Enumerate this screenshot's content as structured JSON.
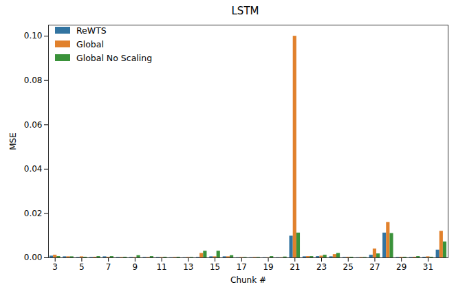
{
  "chart_data": {
    "type": "bar",
    "title": "LSTM",
    "x_label": "Chunk #",
    "y_label": "MSE",
    "categories": [
      3,
      null,
      5,
      null,
      7,
      null,
      9,
      null,
      11,
      null,
      13,
      null,
      15,
      null,
      17,
      null,
      19,
      null,
      21,
      null,
      23,
      null,
      25,
      null,
      27,
      null,
      29,
      null,
      31,
      null
    ],
    "series": [
      {
        "name": "ReWTS",
        "color": "#3274a1",
        "values": [
          0.0008,
          0.0005,
          0.0002,
          0.0002,
          0.0005,
          0.0002,
          0.0002,
          0.0002,
          0.0002,
          0.0001,
          0.0001,
          0.0002,
          0.0005,
          0.0005,
          0.0001,
          0.0001,
          0.0001,
          0.0001,
          0.0098,
          0.0005,
          0.0006,
          0.0005,
          0.0002,
          0.0001,
          0.0012,
          0.0112,
          0.0002,
          0.0002,
          0.0003,
          0.0035
        ]
      },
      {
        "name": "Global",
        "color": "#e1812c",
        "values": [
          0.0012,
          0.0005,
          0.0005,
          0.0003,
          0.0003,
          0.0002,
          0.0002,
          0.0002,
          0.0002,
          0.0002,
          0.0002,
          0.002,
          0.0005,
          0.0005,
          0.0002,
          0.0002,
          0.0001,
          0.0001,
          0.1,
          0.0006,
          0.0008,
          0.0015,
          0.0003,
          0.0002,
          0.004,
          0.016,
          0.0003,
          0.0003,
          0.0005,
          0.012
        ]
      },
      {
        "name": "Global No Scaling",
        "color": "#3a923a",
        "values": [
          0.0006,
          0.0005,
          0.0003,
          0.0006,
          0.0006,
          0.0003,
          0.001,
          0.0006,
          0.0003,
          0.0003,
          0.0002,
          0.003,
          0.003,
          0.001,
          0.0002,
          0.0002,
          0.0006,
          0.0004,
          0.0112,
          0.0006,
          0.0012,
          0.002,
          0.0003,
          0.0002,
          0.0018,
          0.011,
          0.0003,
          0.0006,
          0.0003,
          0.0072
        ]
      }
    ],
    "ylim": [
      0,
      0.105
    ],
    "yticks": [
      {
        "value": 0,
        "label": "0.00"
      },
      {
        "value": 0.02,
        "label": "0.02"
      },
      {
        "value": 0.04,
        "label": "0.04"
      },
      {
        "value": 0.06,
        "label": "0.06"
      },
      {
        "value": 0.08,
        "label": "0.08"
      },
      {
        "value": 0.1,
        "label": "0.10"
      }
    ],
    "legend": "upper left"
  }
}
